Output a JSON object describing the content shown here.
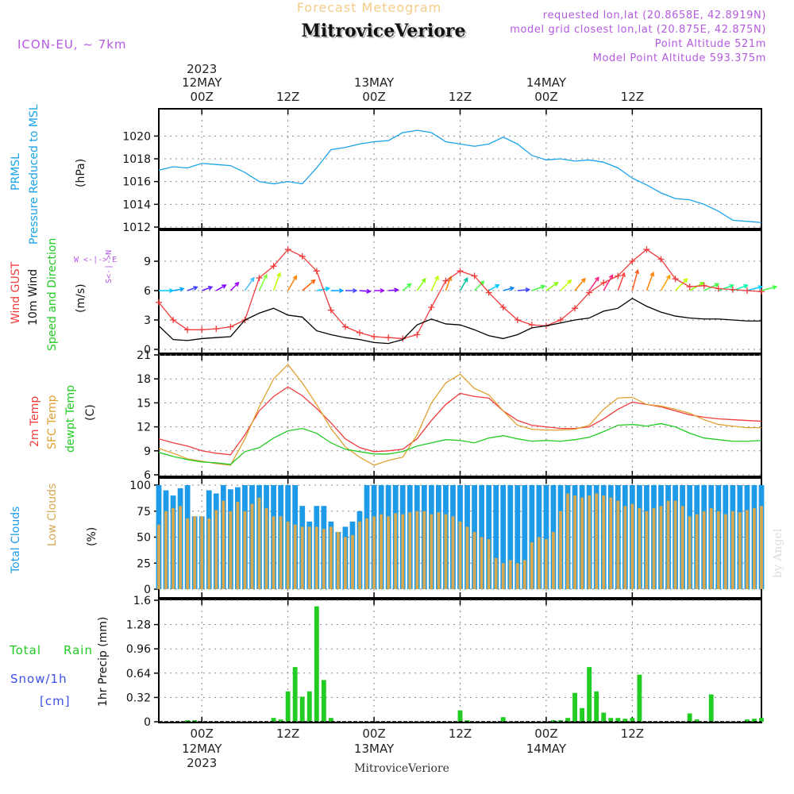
{
  "header": {
    "title_faint": "Forecast Meteogram",
    "location": "MitroviceVeriore",
    "model": "ICON-EU, ~ 7km",
    "requested": "requested lon,lat (20.8658E, 42.8919N)",
    "closest": "model grid closest lon,lat (20.875E, 42.875N)",
    "point_alt": "Point Altitude 521m",
    "model_alt": "Model Point Altitude 593.375m"
  },
  "footer": {
    "location": "MitroviceVeriore",
    "watermark": "by Angel"
  },
  "time_axis": {
    "top": [
      {
        "key": "d12",
        "l1": "2023",
        "l2": "12MAY",
        "l3": "00Z"
      },
      {
        "key": "h12a",
        "l3": "12Z"
      },
      {
        "key": "d13",
        "l2": "13MAY",
        "l3": "00Z"
      },
      {
        "key": "h12b",
        "l3": "12Z"
      },
      {
        "key": "d14",
        "l2": "14MAY",
        "l3": "00Z"
      },
      {
        "key": "h12c",
        "l3": "12Z"
      }
    ],
    "bottom": [
      {
        "key": "d12",
        "l1": "00Z",
        "l2": "12MAY",
        "l3": "2023"
      },
      {
        "key": "h12a",
        "l1": "12Z"
      },
      {
        "key": "d13",
        "l1": "00Z",
        "l2": "13MAY"
      },
      {
        "key": "h12b",
        "l1": "12Z"
      },
      {
        "key": "d14",
        "l1": "00Z",
        "l2": "14MAY"
      },
      {
        "key": "h12c",
        "l1": "12Z"
      }
    ]
  },
  "panel_labels": {
    "p1": {
      "a": "PRMSL",
      "b": "Pressure Reduced to MSL",
      "unit": "(hPa)"
    },
    "p2": {
      "a": "Wind GUST",
      "b": "10m Wind",
      "c": "Speed and Direction",
      "unit": "(m/s)",
      "compass_we": "W <-|-> E",
      "compass_sn": "S<-|->N"
    },
    "p3": {
      "a": "2m Temp",
      "b": "SFC Temp",
      "c": "dewpt Temp",
      "unit": "(C)"
    },
    "p4": {
      "a": "Total Clouds",
      "b": "Low Clouds",
      "unit": "(%)"
    },
    "p5": {
      "a": "Total",
      "b": "Rain",
      "c": "Snow/1h",
      "d": "[cm]",
      "unit": "1hr Precip (mm)"
    }
  },
  "colors": {
    "pressure": "#1aa3e8",
    "gust": "#f03c3c",
    "wind": "#000000",
    "t2m": "#f03c3c",
    "tsfc": "#e0a030",
    "dewpt": "#22cc22",
    "total_clouds": "#1e9be8",
    "low_clouds": "#d8a850",
    "precip": "#22cc22",
    "label_violet": "#b45ae0",
    "snow": "#3c50e8",
    "grid": "#888888"
  },
  "chart_data": [
    {
      "type": "line",
      "name": "PRMSL",
      "ylabel": "(hPa)",
      "ylim": [
        1012,
        1021
      ],
      "yticks": [
        "1012",
        "1014",
        "1016",
        "1018",
        "1020"
      ],
      "x_hours": [
        0,
        2,
        4,
        6,
        8,
        10,
        12,
        14,
        16,
        18,
        20,
        22,
        24,
        26,
        28,
        30,
        32,
        34,
        36,
        38,
        40,
        42,
        44,
        46,
        48,
        50,
        52,
        54,
        56,
        58,
        60,
        62,
        64,
        66,
        68,
        70,
        72,
        74,
        76,
        78,
        80,
        82,
        84
      ],
      "series": [
        {
          "name": "PRMSL",
          "values": [
            1017.0,
            1017.3,
            1017.2,
            1017.6,
            1017.5,
            1017.4,
            1016.8,
            1016.0,
            1015.8,
            1016.0,
            1015.8,
            1017.2,
            1018.8,
            1019.0,
            1019.3,
            1019.5,
            1019.6,
            1020.3,
            1020.5,
            1020.3,
            1019.5,
            1019.3,
            1019.1,
            1019.3,
            1019.9,
            1019.3,
            1018.3,
            1017.9,
            1018.0,
            1017.8,
            1017.9,
            1017.7,
            1017.2,
            1016.3,
            1015.7,
            1015.0,
            1014.5,
            1014.4,
            1014.0,
            1013.4,
            1012.6,
            1012.5,
            1012.4
          ]
        }
      ]
    },
    {
      "type": "line",
      "name": "Wind",
      "ylabel": "(m/s)",
      "ylim": [
        0,
        12
      ],
      "yticks": [
        "0",
        "3",
        "6",
        "9"
      ],
      "x_hours": [
        0,
        2,
        4,
        6,
        8,
        10,
        12,
        14,
        16,
        18,
        20,
        22,
        24,
        26,
        28,
        30,
        32,
        34,
        36,
        38,
        40,
        42,
        44,
        46,
        48,
        50,
        52,
        54,
        56,
        58,
        60,
        62,
        64,
        66,
        68,
        70,
        72,
        74,
        76,
        78,
        80,
        82,
        84
      ],
      "series": [
        {
          "name": "Wind GUST",
          "values": [
            4.8,
            3.0,
            2.0,
            2.0,
            2.1,
            2.3,
            3.0,
            7.3,
            8.5,
            10.2,
            9.5,
            8.0,
            4.0,
            2.3,
            1.7,
            1.3,
            1.2,
            1.1,
            1.5,
            4.3,
            7.0,
            8.0,
            7.5,
            5.8,
            4.3,
            3.0,
            2.5,
            2.4,
            3.0,
            4.2,
            5.8,
            6.8,
            7.5,
            9.0,
            10.2,
            9.2,
            7.2,
            6.4,
            6.5,
            6.2,
            6.1,
            6.0,
            5.9
          ]
        },
        {
          "name": "10m Wind",
          "values": [
            2.4,
            1.0,
            0.9,
            1.1,
            1.2,
            1.3,
            3.0,
            3.7,
            4.2,
            3.5,
            3.3,
            1.9,
            1.5,
            1.2,
            1.0,
            0.7,
            0.6,
            1.0,
            2.5,
            3.1,
            2.6,
            2.5,
            2.0,
            1.4,
            1.1,
            1.5,
            2.2,
            2.4,
            2.7,
            3.0,
            3.2,
            3.9,
            4.2,
            5.2,
            4.4,
            3.8,
            3.4,
            3.2,
            3.1,
            3.1,
            3.0,
            2.9,
            2.9
          ]
        }
      ],
      "wind_arrows": {
        "hours": [
          0,
          2,
          4,
          6,
          8,
          10,
          12,
          14,
          16,
          18,
          20,
          22,
          24,
          26,
          28,
          30,
          32,
          34,
          36,
          38,
          40,
          42,
          44,
          46,
          48,
          50,
          52,
          54,
          56,
          58,
          60,
          62,
          64,
          66,
          68,
          70,
          72,
          74,
          76,
          78,
          80,
          82,
          84
        ],
        "direction_deg": [
          270,
          260,
          250,
          250,
          240,
          225,
          215,
          205,
          200,
          210,
          230,
          260,
          270,
          270,
          275,
          270,
          265,
          230,
          215,
          205,
          200,
          210,
          225,
          240,
          255,
          265,
          250,
          235,
          225,
          220,
          215,
          210,
          200,
          195,
          200,
          210,
          225,
          240,
          245,
          250,
          250,
          255,
          255
        ],
        "color": [
          "#00c8ff",
          "#00a0ff",
          "#4040ff",
          "#6020ff",
          "#8000ff",
          "#a000ff",
          "#40c0ff",
          "#80ff40",
          "#c0ff00",
          "#ff8000",
          "#ff6000",
          "#00c8ff",
          "#00a0ff",
          "#4040ff",
          "#8000ff",
          "#a000ff",
          "#8000ff",
          "#40ff40",
          "#80ff00",
          "#c0ff00",
          "#ff8000",
          "#00c0a0",
          "#40ff40",
          "#00c8ff",
          "#0080ff",
          "#4040ff",
          "#40ff40",
          "#80ff00",
          "#c0ff00",
          "#ff8000",
          "#ff2080",
          "#ff2080",
          "#ff4040",
          "#ff6020",
          "#ff8000",
          "#ffa000",
          "#c0ff00",
          "#80ff00",
          "#40ff40",
          "#20ff80",
          "#00ffb0",
          "#00c8ff",
          "#40ff40"
        ]
      }
    },
    {
      "type": "line",
      "name": "Temperature",
      "ylabel": "(C)",
      "ylim": [
        6,
        21
      ],
      "yticks": [
        "6",
        "9",
        "12",
        "15",
        "18",
        "21"
      ],
      "x_hours": [
        0,
        2,
        4,
        6,
        8,
        10,
        12,
        14,
        16,
        18,
        20,
        22,
        24,
        26,
        28,
        30,
        32,
        34,
        36,
        38,
        40,
        42,
        44,
        46,
        48,
        50,
        52,
        54,
        56,
        58,
        60,
        62,
        64,
        66,
        68,
        70,
        72,
        74,
        76,
        78,
        80,
        82,
        84
      ],
      "series": [
        {
          "name": "2m Temp",
          "values": [
            10.5,
            10.0,
            9.6,
            9.0,
            8.7,
            8.5,
            11.0,
            14.0,
            15.8,
            17.0,
            15.9,
            14.3,
            12.5,
            10.5,
            9.4,
            8.9,
            9.0,
            9.2,
            10.5,
            12.8,
            14.8,
            16.2,
            15.8,
            15.6,
            14.0,
            12.8,
            12.2,
            12.0,
            11.8,
            11.8,
            12.0,
            13.0,
            14.2,
            15.1,
            14.8,
            14.5,
            14.0,
            13.5,
            13.2,
            13.0,
            12.9,
            12.8,
            12.7
          ]
        },
        {
          "name": "SFC Temp",
          "values": [
            9.3,
            8.7,
            8.0,
            7.7,
            7.4,
            7.2,
            10.5,
            14.5,
            18.0,
            19.8,
            17.5,
            14.8,
            11.8,
            9.5,
            8.2,
            7.2,
            7.8,
            8.2,
            11.0,
            15.0,
            17.5,
            18.6,
            16.8,
            16.0,
            14.0,
            12.2,
            11.7,
            11.6,
            11.6,
            11.7,
            12.2,
            14.2,
            15.6,
            15.7,
            14.8,
            14.6,
            14.2,
            13.7,
            12.9,
            12.3,
            12.1,
            11.9,
            11.9
          ]
        },
        {
          "name": "dewpt Temp",
          "values": [
            8.8,
            8.3,
            7.9,
            7.6,
            7.5,
            7.3,
            8.9,
            9.4,
            10.6,
            11.5,
            11.8,
            11.2,
            10.0,
            9.2,
            8.9,
            8.6,
            8.6,
            8.9,
            9.6,
            10.0,
            10.4,
            10.3,
            10.0,
            10.6,
            10.9,
            10.5,
            10.2,
            10.3,
            10.2,
            10.4,
            10.7,
            11.4,
            12.2,
            12.3,
            12.1,
            12.4,
            12.0,
            11.2,
            10.6,
            10.4,
            10.2,
            10.2,
            10.3
          ]
        }
      ]
    },
    {
      "type": "bar",
      "name": "Clouds",
      "ylabel": "(%)",
      "ylim": [
        0,
        100
      ],
      "yticks": [
        "0",
        "25",
        "50",
        "75",
        "100"
      ],
      "x_hours": [
        0,
        1,
        2,
        3,
        4,
        5,
        6,
        7,
        8,
        9,
        10,
        11,
        12,
        13,
        14,
        15,
        16,
        17,
        18,
        19,
        20,
        21,
        22,
        23,
        24,
        25,
        26,
        27,
        28,
        29,
        30,
        31,
        32,
        33,
        34,
        35,
        36,
        37,
        38,
        39,
        40,
        41,
        42,
        43,
        44,
        45,
        46,
        47,
        48,
        49,
        50,
        51,
        52,
        53,
        54,
        55,
        56,
        57,
        58,
        59,
        60,
        61,
        62,
        63,
        64,
        65,
        66,
        67,
        68,
        69,
        70,
        71,
        72,
        73,
        74,
        75,
        76,
        77,
        78,
        79,
        80,
        81,
        82,
        83,
        84
      ],
      "series": [
        {
          "name": "Total Clouds",
          "values": [
            100,
            95,
            90,
            97,
            100,
            70,
            70,
            95,
            92,
            100,
            96,
            98,
            100,
            100,
            100,
            100,
            100,
            100,
            100,
            100,
            80,
            65,
            80,
            80,
            65,
            55,
            60,
            65,
            75,
            100,
            100,
            100,
            100,
            100,
            100,
            100,
            100,
            100,
            100,
            100,
            100,
            100,
            100,
            100,
            100,
            100,
            100,
            100,
            100,
            100,
            100,
            100,
            100,
            100,
            100,
            100,
            100,
            100,
            100,
            100,
            100,
            100,
            100,
            100,
            100,
            100,
            100,
            100,
            100,
            100,
            100,
            100,
            100,
            100,
            100,
            100,
            100,
            100,
            100,
            100,
            100,
            100,
            100,
            100,
            100
          ]
        },
        {
          "name": "Low Clouds",
          "values": [
            62,
            75,
            78,
            80,
            68,
            70,
            70,
            68,
            76,
            85,
            75,
            84,
            75,
            82,
            88,
            78,
            70,
            70,
            65,
            62,
            60,
            60,
            60,
            58,
            60,
            55,
            50,
            52,
            65,
            68,
            70,
            72,
            70,
            73,
            72,
            74,
            75,
            75,
            72,
            74,
            72,
            70,
            65,
            60,
            55,
            50,
            48,
            30,
            25,
            28,
            25,
            28,
            45,
            50,
            48,
            55,
            75,
            92,
            90,
            88,
            90,
            92,
            90,
            88,
            85,
            80,
            82,
            78,
            75,
            78,
            80,
            85,
            85,
            80,
            70,
            72,
            75,
            78,
            75,
            72,
            75,
            74,
            76,
            78,
            80
          ]
        }
      ]
    },
    {
      "type": "bar",
      "name": "Precip",
      "ylabel": "1hr Precip (mm)",
      "ylim": [
        0,
        1.6
      ],
      "yticks": [
        "0",
        "0.32",
        "0.64",
        "0.96",
        "1.28",
        "1.6"
      ],
      "x_hours": [
        0,
        1,
        2,
        3,
        4,
        5,
        6,
        7,
        8,
        9,
        10,
        11,
        12,
        13,
        14,
        15,
        16,
        17,
        18,
        19,
        20,
        21,
        22,
        23,
        24,
        25,
        26,
        27,
        28,
        29,
        30,
        31,
        32,
        33,
        34,
        35,
        36,
        37,
        38,
        39,
        40,
        41,
        42,
        43,
        44,
        45,
        46,
        47,
        48,
        49,
        50,
        51,
        52,
        53,
        54,
        55,
        56,
        57,
        58,
        59,
        60,
        61,
        62,
        63,
        64,
        65,
        66,
        67,
        68,
        69,
        70,
        71,
        72,
        73,
        74,
        75,
        76,
        77,
        78,
        79,
        80,
        81,
        82,
        83,
        84
      ],
      "series": [
        {
          "name": "Total Rain",
          "values": [
            0,
            0,
            0,
            0,
            0.02,
            0.02,
            0,
            0,
            0,
            0,
            0,
            0,
            0,
            0,
            0,
            0,
            0.05,
            0.03,
            0.4,
            0.72,
            0.33,
            0.4,
            1.52,
            0.55,
            0.05,
            0,
            0,
            0,
            0,
            0,
            0,
            0,
            0,
            0,
            0,
            0,
            0,
            0,
            0,
            0,
            0,
            0,
            0.15,
            0.02,
            0,
            0,
            0,
            0,
            0.06,
            0,
            0,
            0,
            0,
            0,
            0,
            0.02,
            0.02,
            0.05,
            0.38,
            0.18,
            0.72,
            0.4,
            0.12,
            0.05,
            0.05,
            0.04,
            0.05,
            0.62,
            0,
            0,
            0,
            0,
            0,
            0,
            0.11,
            0.03,
            0,
            0.36,
            0,
            0,
            0,
            0,
            0.03,
            0.04,
            0.05
          ]
        }
      ]
    }
  ]
}
